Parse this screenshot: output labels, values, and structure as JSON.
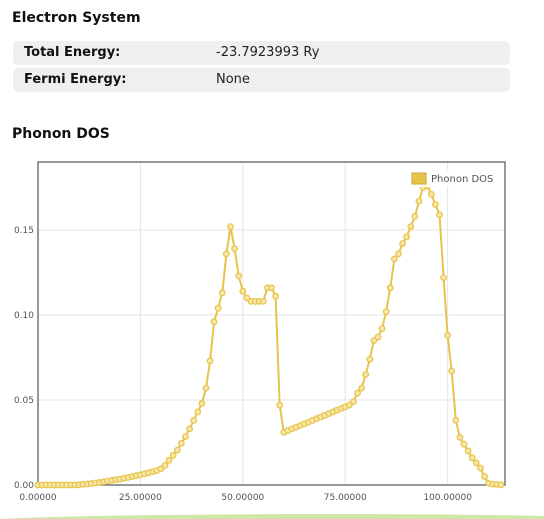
{
  "electron": {
    "title": "Electron System",
    "rows": [
      {
        "label": "Total Energy:",
        "value": "-23.7923993 Ry"
      },
      {
        "label": "Fermi Energy:",
        "value": "None"
      }
    ]
  },
  "phonon": {
    "title": "Phonon DOS"
  },
  "colors": {
    "series": "#e8c34a",
    "series_fill": "#f5e7a8",
    "grid": "#e4e4e4",
    "row_bg": "#efefef",
    "accent_green": "#cfe7a6"
  },
  "chart_data": {
    "type": "line",
    "title": "",
    "xlabel": "",
    "ylabel": "",
    "xlim": [
      0,
      114
    ],
    "ylim": [
      0,
      0.19
    ],
    "xticks": [
      "0.00000",
      "25.00000",
      "50.00000",
      "75.00000",
      "100.00000"
    ],
    "yticks": [
      "0.00",
      "0.05",
      "0.10",
      "0.15"
    ],
    "grid": true,
    "legend_position": "top-right",
    "series": [
      {
        "name": "Phonon DOS",
        "x": [
          0,
          1,
          2,
          3,
          4,
          5,
          6,
          7,
          8,
          9,
          10,
          11,
          12,
          13,
          14,
          15,
          16,
          17,
          18,
          19,
          20,
          21,
          22,
          23,
          24,
          25,
          26,
          27,
          28,
          29,
          30,
          31,
          32,
          33,
          34,
          35,
          36,
          37,
          38,
          39,
          40,
          41,
          42,
          43,
          44,
          45,
          46,
          47,
          48,
          49,
          50,
          51,
          52,
          53,
          54,
          55,
          56,
          57,
          58,
          59,
          60,
          61,
          62,
          63,
          64,
          65,
          66,
          67,
          68,
          69,
          70,
          71,
          72,
          73,
          74,
          75,
          76,
          77,
          78,
          79,
          80,
          81,
          82,
          83,
          84,
          85,
          86,
          87,
          88,
          89,
          90,
          91,
          92,
          93,
          94,
          95,
          96,
          97,
          98,
          99,
          100,
          101,
          102,
          103,
          104,
          105,
          106,
          107,
          108,
          109,
          110,
          111,
          112,
          113
        ],
        "y": [
          0,
          0,
          0,
          0,
          0,
          0,
          0,
          0,
          0,
          0,
          0.0002,
          0.0004,
          0.0006,
          0.0009,
          0.0012,
          0.0015,
          0.0019,
          0.0023,
          0.0027,
          0.0031,
          0.0035,
          0.004,
          0.0045,
          0.005,
          0.0055,
          0.006,
          0.0066,
          0.0072,
          0.0078,
          0.0085,
          0.0095,
          0.0115,
          0.0145,
          0.0175,
          0.0205,
          0.0245,
          0.0285,
          0.033,
          0.038,
          0.043,
          0.048,
          0.057,
          0.073,
          0.096,
          0.104,
          0.113,
          0.136,
          0.152,
          0.139,
          0.123,
          0.114,
          0.11,
          0.108,
          0.108,
          0.108,
          0.108,
          0.116,
          0.116,
          0.111,
          0.047,
          0.031,
          0.032,
          0.033,
          0.034,
          0.035,
          0.036,
          0.037,
          0.038,
          0.039,
          0.04,
          0.041,
          0.042,
          0.043,
          0.044,
          0.045,
          0.046,
          0.047,
          0.049,
          0.054,
          0.057,
          0.065,
          0.074,
          0.085,
          0.087,
          0.092,
          0.102,
          0.116,
          0.133,
          0.136,
          0.142,
          0.146,
          0.152,
          0.158,
          0.167,
          0.175,
          0.176,
          0.171,
          0.165,
          0.159,
          0.122,
          0.088,
          0.067,
          0.038,
          0.028,
          0.024,
          0.02,
          0.016,
          0.013,
          0.01,
          0.005,
          0.001,
          0.0005,
          0.0003,
          0.0001
        ]
      }
    ]
  }
}
